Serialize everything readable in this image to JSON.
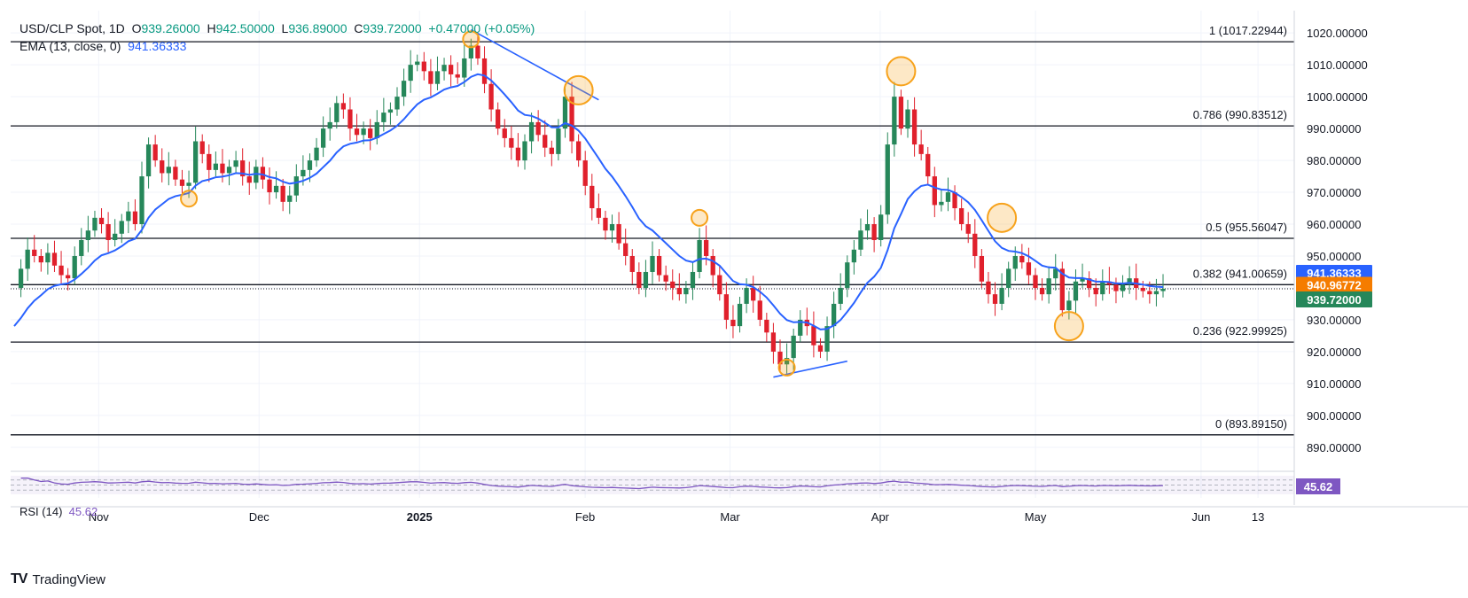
{
  "legend": {
    "symbol": "USD/CLP Spot, 1D",
    "o_label": "O",
    "o": "939.26000",
    "h_label": "H",
    "h": "942.50000",
    "l_label": "L",
    "l": "936.89000",
    "c_label": "C",
    "c": "939.72000",
    "change": "+0.47000 (+0.05%)",
    "ema_label": "EMA (13, close, 0)",
    "ema_value": "941.36333",
    "rsi_label": "RSI (14)",
    "rsi_value": "45.62"
  },
  "brand": {
    "name": "TradingView"
  },
  "colors": {
    "up": "#26875a",
    "down": "#e0202c",
    "ema": "#2962ff",
    "rsi": "#7e57c2",
    "marker": "#f7a21b",
    "grid": "#f0f3fa"
  },
  "chart_data": {
    "type": "candlestick",
    "ylim": [
      883,
      1027
    ],
    "yticks": [
      "890.00000",
      "900.00000",
      "910.00000",
      "920.00000",
      "930.00000",
      "940.00000",
      "950.00000",
      "960.00000",
      "970.00000",
      "980.00000",
      "990.00000",
      "1000.00000",
      "1010.00000",
      "1020.00000"
    ],
    "xticks": [
      {
        "label": "Nov",
        "date": "2024-11-01"
      },
      {
        "label": "Dec",
        "date": "2024-12-02"
      },
      {
        "label": "2025",
        "date": "2025-01-02",
        "bold": true
      },
      {
        "label": "Feb",
        "date": "2025-02-03"
      },
      {
        "label": "Mar",
        "date": "2025-03-03"
      },
      {
        "label": "Apr",
        "date": "2025-04-01"
      },
      {
        "label": "May",
        "date": "2025-05-01"
      },
      {
        "label": "Jun",
        "date": "2025-06-02"
      },
      {
        "label": "13",
        "date": "2025-06-13"
      }
    ],
    "fib_levels": [
      {
        "label": "1 (1017.22944)",
        "value": 1017.22944
      },
      {
        "label": "0.786 (990.83512)",
        "value": 990.83512
      },
      {
        "label": "0.5 (955.56047)",
        "value": 955.56047
      },
      {
        "label": "0.382 (941.00659)",
        "value": 941.00659
      },
      {
        "label": "0.236 (922.99925)",
        "value": 922.99925
      },
      {
        "label": "0 (893.89150)",
        "value": 893.8915
      }
    ],
    "price_tags": [
      {
        "text": "941.36333",
        "value": 941.36333,
        "color": "#2962ff"
      },
      {
        "text": "940.96772",
        "value": 940.96772,
        "color": "#f57c00"
      },
      {
        "text": "939.72000",
        "value": 939.72,
        "color": "#26875a"
      }
    ],
    "rsi_tag": {
      "text": "45.62",
      "color": "#7e57c2"
    },
    "closes": [
      940,
      946,
      952,
      950,
      948,
      951,
      947,
      944,
      943,
      950,
      955,
      958,
      962,
      960,
      955,
      957,
      961,
      964,
      960,
      975,
      985,
      980,
      976,
      978,
      974,
      972,
      973,
      986,
      982,
      977,
      979,
      976,
      978,
      980,
      975,
      973,
      978,
      974,
      970,
      972,
      967,
      969,
      975,
      977,
      980,
      984,
      990,
      992,
      998,
      996,
      990,
      988,
      990,
      987,
      992,
      995,
      996,
      1000,
      1005,
      1010,
      1011,
      1008,
      1004,
      1008,
      1010,
      1007,
      1006,
      1012,
      1016,
      1012,
      1004,
      996,
      990,
      987,
      984,
      980,
      986,
      992,
      988,
      984,
      982,
      990,
      1000,
      986,
      980,
      972,
      965,
      962,
      958,
      960,
      954,
      950,
      945,
      940,
      945,
      950,
      944,
      942,
      940,
      938,
      940,
      945,
      955,
      950,
      944,
      938,
      930,
      928,
      935,
      940,
      936,
      930,
      926,
      920,
      916,
      918,
      925,
      930,
      928,
      922,
      920,
      928,
      935,
      940,
      948,
      952,
      958,
      960,
      955,
      963,
      985,
      1000,
      990,
      996,
      985,
      982,
      975,
      966,
      967,
      970,
      965,
      960,
      957,
      950,
      942,
      938,
      935,
      940,
      946,
      950,
      948,
      944,
      940,
      938,
      943,
      946,
      933,
      936,
      942,
      943,
      940,
      938,
      942,
      941,
      939,
      941,
      943,
      940,
      939,
      938,
      939,
      939.72
    ],
    "ema": {
      "name": "EMA (13, close, 0)",
      "period": 13
    },
    "rsi": {
      "name": "RSI (14)",
      "period": 14,
      "levels": [
        70,
        50,
        30
      ]
    },
    "circle_markers": [
      {
        "date_index": 26,
        "price": 968,
        "size": "small"
      },
      {
        "date_index": 68,
        "price": 1018,
        "size": "small"
      },
      {
        "date_index": 84,
        "price": 1002,
        "size": "large"
      },
      {
        "date_index": 102,
        "price": 962,
        "size": "small"
      },
      {
        "date_index": 115,
        "price": 915,
        "size": "small"
      },
      {
        "date_index": 132,
        "price": 1008,
        "size": "large"
      },
      {
        "date_index": 147,
        "price": 962,
        "size": "large"
      },
      {
        "date_index": 157,
        "price": 928,
        "size": "large"
      }
    ],
    "trendlines": [
      {
        "from": {
          "index": 68,
          "price": 1021
        },
        "to": {
          "index": 87,
          "price": 999
        }
      },
      {
        "from": {
          "index": 113,
          "price": 912
        },
        "to": {
          "index": 124,
          "price": 917
        }
      }
    ]
  }
}
